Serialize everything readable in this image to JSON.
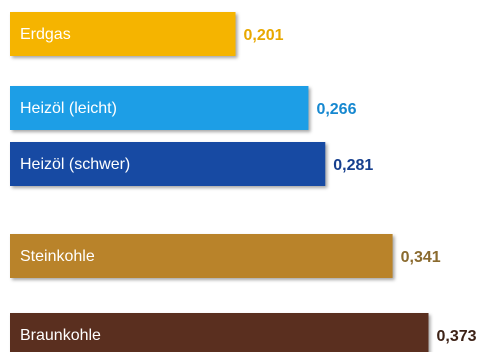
{
  "chart_data": {
    "type": "bar",
    "orientation": "horizontal",
    "title": "",
    "xlabel": "",
    "ylabel": "",
    "grid": false,
    "categories": [
      "Erdgas",
      "Heizöl (leicht)",
      "Heizöl (schwer)",
      "Steinkohle",
      "Braunkohle"
    ],
    "values": [
      0.201,
      0.266,
      0.281,
      0.341,
      0.373
    ],
    "value_labels": [
      "0,201",
      "0,266",
      "0,281",
      "0,341",
      "0,373"
    ],
    "bar_colors": [
      "#f5b400",
      "#1d9ee6",
      "#174aa3",
      "#b9832a",
      "#5a2f1f"
    ],
    "label_colors": [
      "#e8a800",
      "#1688d0",
      "#163f8e",
      "#8a6a2e",
      "#3d2216"
    ]
  }
}
